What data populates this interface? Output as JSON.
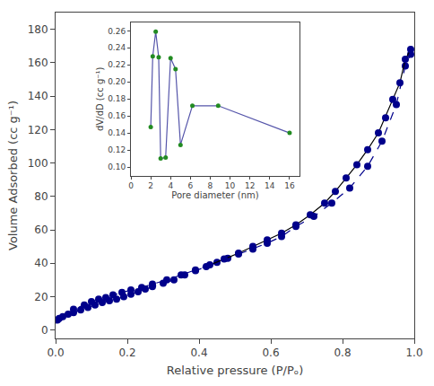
{
  "chart_data": [
    {
      "type": "line",
      "xlabel": "Relative pressure (P/Pₒ)",
      "ylabel": "Volume Adsorbed (cc g⁻¹)",
      "xlim": [
        0.0,
        1.0
      ],
      "ylim": [
        -5,
        190
      ],
      "xticks": [
        {
          "value": 0.0,
          "label": "0.0"
        },
        0.2,
        0.4,
        0.6,
        0.8,
        {
          "value": 1.0,
          "label": "1.0"
        }
      ],
      "yticks": [
        0,
        20,
        40,
        60,
        80,
        100,
        120,
        140,
        160,
        180
      ],
      "grid": false,
      "series": [
        {
          "color": "#00008B",
          "line_style": "dashed",
          "marker": "circle",
          "x": [
            0.005,
            0.01,
            0.02,
            0.035,
            0.05,
            0.07,
            0.09,
            0.11,
            0.13,
            0.15,
            0.17,
            0.19,
            0.21,
            0.23,
            0.25,
            0.27,
            0.3,
            0.33,
            0.36,
            0.39,
            0.42,
            0.45,
            0.48,
            0.51,
            0.55,
            0.59,
            0.63,
            0.67,
            0.72,
            0.77,
            0.82,
            0.87,
            0.91,
            0.95,
            0.975,
            0.99
          ],
          "values": [
            6.0,
            7.0,
            8.0,
            9.5,
            10.5,
            12.0,
            13.5,
            15.0,
            16.5,
            17.5,
            18.5,
            20.0,
            21.5,
            23.0,
            24.5,
            26.0,
            28.0,
            30.0,
            33.0,
            35.5,
            38.0,
            40.5,
            43.0,
            45.5,
            48.5,
            52.0,
            56.0,
            62.0,
            68.0,
            76.0,
            85.0,
            98.0,
            113.0,
            135.0,
            158.0,
            165.0
          ]
        },
        {
          "color": "#000000",
          "line_style": "solid",
          "marker": "none",
          "x": [
            0.99,
            0.975,
            0.96,
            0.94,
            0.92,
            0.9,
            0.87,
            0.84,
            0.81,
            0.78,
            0.75,
            0.71,
            0.67,
            0.63,
            0.59,
            0.55,
            0.51,
            0.47,
            0.43
          ],
          "values": [
            168.0,
            162.0,
            148.0,
            138.0,
            127.0,
            118.0,
            108.0,
            99.0,
            91.0,
            83.0,
            76.0,
            69.0,
            63.0,
            58.0,
            54.0,
            50.0,
            46.0,
            42.5,
            39.0
          ]
        },
        {
          "color": "#00008B",
          "line_style": "dashed",
          "marker": "none",
          "x": [
            0.43,
            0.39,
            0.35,
            0.31,
            0.27,
            0.24,
            0.21,
            0.185,
            0.16,
            0.14,
            0.12,
            0.1,
            0.08,
            0.05
          ],
          "values": [
            39.0,
            36.0,
            33.0,
            30.0,
            27.5,
            25.5,
            24.0,
            22.5,
            21.0,
            19.5,
            18.5,
            17.0,
            15.0,
            12.5
          ]
        },
        {
          "color": "#00008B",
          "line_style": "none",
          "marker": "circle",
          "x": [
            0.99,
            0.975,
            0.96,
            0.94,
            0.92,
            0.9,
            0.87,
            0.84,
            0.81,
            0.78,
            0.75,
            0.71,
            0.67,
            0.63,
            0.59,
            0.55,
            0.51,
            0.47,
            0.43,
            0.39,
            0.35,
            0.31,
            0.27,
            0.24,
            0.21,
            0.185,
            0.16,
            0.14,
            0.12,
            0.1,
            0.08,
            0.05
          ],
          "values": [
            168.0,
            162.0,
            148.0,
            138.0,
            127.0,
            118.0,
            108.0,
            99.0,
            91.0,
            83.0,
            76.0,
            69.0,
            63.0,
            58.0,
            54.0,
            50.0,
            46.0,
            42.5,
            39.0,
            36.0,
            33.0,
            30.0,
            27.5,
            25.5,
            24.0,
            22.5,
            21.0,
            19.5,
            18.5,
            17.0,
            15.0,
            12.5
          ]
        }
      ]
    },
    {
      "type": "line",
      "xlabel": "Pore diameter (nm)",
      "ylabel": "dV/dD (cc g⁻¹)",
      "xlim": [
        0,
        17
      ],
      "ylim": [
        0.09,
        0.27
      ],
      "xticks": [
        0,
        2,
        4,
        6,
        8,
        10,
        12,
        14,
        16
      ],
      "yticks": [
        {
          "value": 0.1,
          "label": "0.10"
        },
        0.12,
        0.14,
        0.16,
        0.18,
        {
          "value": 0.2,
          "label": "0.20"
        },
        0.22,
        0.24,
        0.26
      ],
      "grid": false,
      "series": [
        {
          "color": "#5555AA",
          "line_style": "solid",
          "marker": "none",
          "x": [
            2.0,
            2.2,
            2.5,
            2.8,
            3.0,
            3.5,
            4.0,
            4.5,
            5.0,
            6.2,
            8.8,
            16.0
          ],
          "values": [
            0.147,
            0.23,
            0.259,
            0.229,
            0.11,
            0.111,
            0.228,
            0.215,
            0.126,
            0.172,
            0.172,
            0.14
          ]
        },
        {
          "color": "#228B22",
          "line_style": "none",
          "marker": "circle",
          "x": [
            2.0,
            2.2,
            2.5,
            2.8,
            3.0,
            3.5,
            4.0,
            4.5,
            5.0,
            6.2,
            8.8,
            16.0
          ],
          "values": [
            0.147,
            0.23,
            0.259,
            0.229,
            0.11,
            0.111,
            0.228,
            0.215,
            0.126,
            0.172,
            0.172,
            0.14
          ]
        }
      ]
    }
  ]
}
